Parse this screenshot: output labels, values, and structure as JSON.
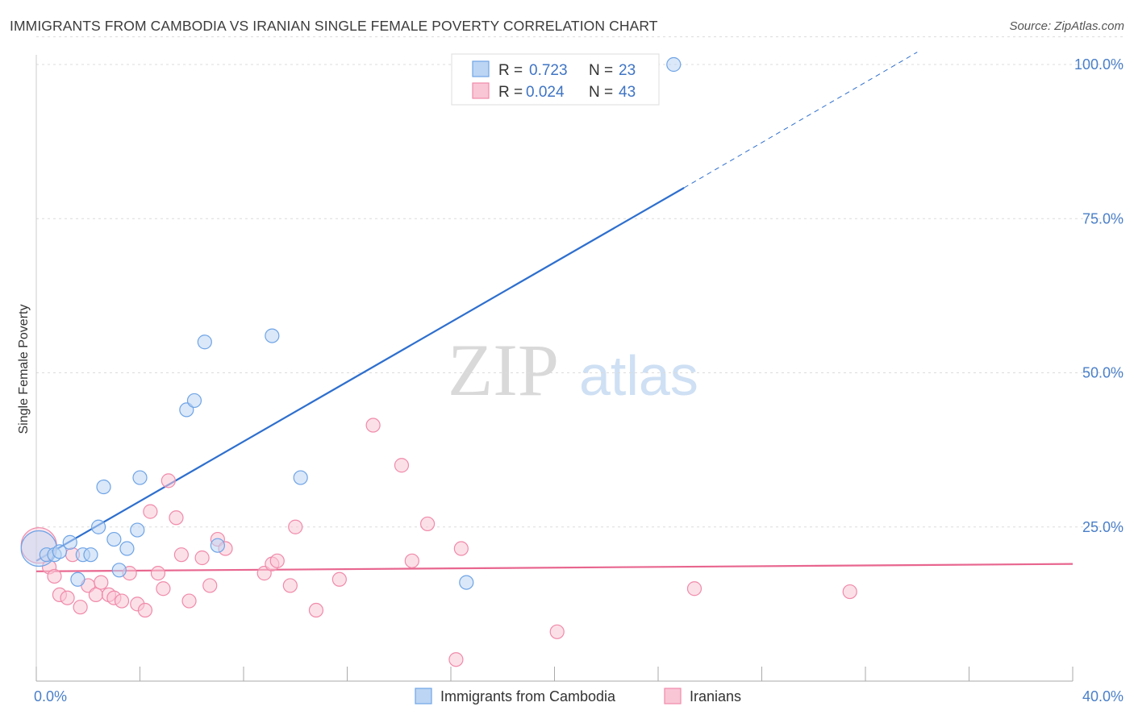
{
  "header": {
    "title": "IMMIGRANTS FROM CAMBODIA VS IRANIAN SINGLE FEMALE POVERTY CORRELATION CHART",
    "source": "Source: ZipAtlas.com"
  },
  "watermark": {
    "part1": "ZIP",
    "part2": "atlas"
  },
  "legend": {
    "r_label": "R =",
    "n_label": "N =",
    "items": [
      {
        "r": "0.723",
        "n": "23",
        "color": "#a8c8f0"
      },
      {
        "r": "0.024",
        "n": "43",
        "color": "#f7b8cc"
      }
    ]
  },
  "chart_data": {
    "type": "scatter",
    "xlabel": "",
    "ylabel": "Single Female Poverty",
    "xlim": [
      0,
      40
    ],
    "ylim": [
      0,
      100
    ],
    "x_ticks": [
      0,
      4,
      8,
      12,
      16,
      20,
      24,
      28,
      32,
      36,
      40
    ],
    "x_tick_labels": [
      {
        "value": 0,
        "label": "0.0%"
      },
      {
        "value": 40,
        "label": "40.0%"
      }
    ],
    "y_tick_labels": [
      {
        "value": 25,
        "label": "25.0%"
      },
      {
        "value": 50,
        "label": "50.0%"
      },
      {
        "value": 75,
        "label": "75.0%"
      },
      {
        "value": 100,
        "label": "100.0%"
      }
    ],
    "grid": true,
    "legend_position": "top-center",
    "series": [
      {
        "name": "Immigrants from Cambodia",
        "color": "#6fa4e6",
        "fill": "#bcd5f4",
        "line_color": "#2e6fce",
        "trend": {
          "x0": 0,
          "y0": 19.5,
          "x1": 25,
          "y1": 80,
          "dash_x1": 34,
          "dash_y1": 102
        },
        "points": [
          {
            "x": 0.1,
            "y": 21.5,
            "large": true
          },
          {
            "x": 0.4,
            "y": 20.5
          },
          {
            "x": 0.7,
            "y": 20.5
          },
          {
            "x": 0.9,
            "y": 21
          },
          {
            "x": 1.3,
            "y": 22.5
          },
          {
            "x": 1.6,
            "y": 16.5
          },
          {
            "x": 1.8,
            "y": 20.5
          },
          {
            "x": 2.1,
            "y": 20.5
          },
          {
            "x": 2.4,
            "y": 25
          },
          {
            "x": 2.6,
            "y": 31.5
          },
          {
            "x": 3.0,
            "y": 23
          },
          {
            "x": 3.2,
            "y": 18
          },
          {
            "x": 3.5,
            "y": 21.5
          },
          {
            "x": 3.9,
            "y": 24.5
          },
          {
            "x": 4.0,
            "y": 33
          },
          {
            "x": 5.8,
            "y": 44
          },
          {
            "x": 6.1,
            "y": 45.5
          },
          {
            "x": 6.5,
            "y": 55
          },
          {
            "x": 7.0,
            "y": 22
          },
          {
            "x": 9.1,
            "y": 56
          },
          {
            "x": 10.2,
            "y": 33
          },
          {
            "x": 16.6,
            "y": 16
          },
          {
            "x": 24.6,
            "y": 100
          }
        ]
      },
      {
        "name": "Iranians",
        "color": "#f08aaa",
        "fill": "#f9c6d6",
        "line_color": "#e8668f",
        "trend": {
          "x0": 0,
          "y0": 17.8,
          "x1": 40,
          "y1": 19
        },
        "points": [
          {
            "x": 0.1,
            "y": 22,
            "large": true
          },
          {
            "x": 0.5,
            "y": 18.5
          },
          {
            "x": 0.7,
            "y": 17
          },
          {
            "x": 0.9,
            "y": 14
          },
          {
            "x": 1.2,
            "y": 13.5
          },
          {
            "x": 1.4,
            "y": 20.5
          },
          {
            "x": 1.7,
            "y": 12
          },
          {
            "x": 2.0,
            "y": 15.5
          },
          {
            "x": 2.3,
            "y": 14
          },
          {
            "x": 2.5,
            "y": 16
          },
          {
            "x": 2.8,
            "y": 14
          },
          {
            "x": 3.0,
            "y": 13.5
          },
          {
            "x": 3.3,
            "y": 13
          },
          {
            "x": 3.6,
            "y": 17.5
          },
          {
            "x": 3.9,
            "y": 12.5
          },
          {
            "x": 4.2,
            "y": 11.5
          },
          {
            "x": 4.4,
            "y": 27.5
          },
          {
            "x": 4.7,
            "y": 17.5
          },
          {
            "x": 4.9,
            "y": 15
          },
          {
            "x": 5.1,
            "y": 32.5
          },
          {
            "x": 5.4,
            "y": 26.5
          },
          {
            "x": 5.6,
            "y": 20.5
          },
          {
            "x": 5.9,
            "y": 13
          },
          {
            "x": 6.4,
            "y": 20
          },
          {
            "x": 6.7,
            "y": 15.5
          },
          {
            "x": 7.0,
            "y": 23
          },
          {
            "x": 7.3,
            "y": 21.5
          },
          {
            "x": 8.8,
            "y": 17.5
          },
          {
            "x": 9.1,
            "y": 19
          },
          {
            "x": 9.3,
            "y": 19.5
          },
          {
            "x": 9.8,
            "y": 15.5
          },
          {
            "x": 10.0,
            "y": 25
          },
          {
            "x": 10.8,
            "y": 11.5
          },
          {
            "x": 11.7,
            "y": 16.5
          },
          {
            "x": 13.0,
            "y": 41.5
          },
          {
            "x": 14.1,
            "y": 35
          },
          {
            "x": 14.5,
            "y": 19.5
          },
          {
            "x": 15.1,
            "y": 25.5
          },
          {
            "x": 16.2,
            "y": 3.5
          },
          {
            "x": 16.4,
            "y": 21.5
          },
          {
            "x": 20.1,
            "y": 8
          },
          {
            "x": 25.4,
            "y": 15
          },
          {
            "x": 31.4,
            "y": 14.5
          }
        ]
      }
    ]
  }
}
